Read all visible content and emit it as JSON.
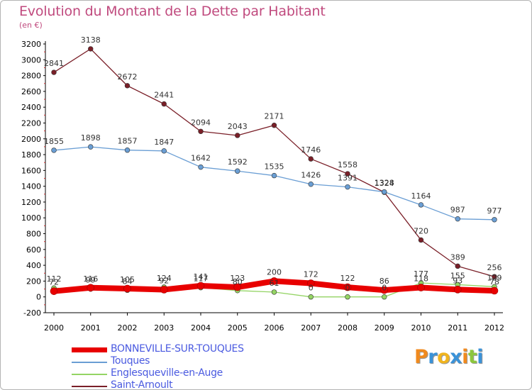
{
  "title": "Evolution du Montant de la Dette par Habitant",
  "unit_label": "(en €)",
  "logo": {
    "text": "Proxiti",
    "letter_colors": [
      "#f08a1e",
      "#3a92d8",
      "#f0b41e",
      "#3a92d8",
      "#f08a1e",
      "#8cc63e",
      "#3a92d8"
    ]
  },
  "chart_data": {
    "type": "line",
    "x": [
      2000,
      2001,
      2002,
      2003,
      2004,
      2005,
      2006,
      2007,
      2008,
      2009,
      2010,
      2011,
      2012
    ],
    "ylim": [
      -200,
      3200
    ],
    "yticks": [
      -200,
      0,
      200,
      400,
      600,
      800,
      1000,
      1200,
      1400,
      1600,
      1800,
      2000,
      2200,
      2400,
      2600,
      2800,
      3000,
      3200
    ],
    "grid": false,
    "legend_position": "bottom-left",
    "series": [
      {
        "name": "Saint-Arnoult",
        "color": "#7a1f28",
        "values": [
          2841,
          3138,
          2672,
          2441,
          2094,
          2043,
          2171,
          1746,
          1558,
          1324,
          720,
          389,
          256
        ],
        "labels": [
          "2841",
          "3138",
          "2672",
          "2441",
          "2094",
          "2043",
          "2171",
          "1746",
          "1558",
          "1324",
          "720",
          "389",
          "256"
        ]
      },
      {
        "name": "Touques",
        "color": "#6a9ed4",
        "values": [
          1855,
          1898,
          1857,
          1847,
          1642,
          1592,
          1535,
          1426,
          1391,
          1328,
          1164,
          987,
          977
        ],
        "labels": [
          "1855",
          "1898",
          "1857",
          "1847",
          "1642",
          "1592",
          "1535",
          "1426",
          "1391",
          "1328",
          "1164",
          "987",
          "977"
        ]
      },
      {
        "name": "Englesqueville-en-Auge",
        "color": "#94d464",
        "values": [
          112,
          99,
          84,
          124,
          117,
          80,
          61,
          0,
          0,
          0,
          177,
          155,
          129
        ],
        "labels": [
          "112",
          "99",
          "84",
          "124",
          "117",
          "80",
          "61",
          "0",
          "0",
          "0",
          "177",
          "155",
          "129"
        ]
      },
      {
        "name": "BONNEVILLE-SUR-TOUQUES",
        "color": "#e80000",
        "values": [
          72,
          116,
          105,
          92,
          141,
          123,
          200,
          172,
          122,
          86,
          118,
          93,
          78
        ],
        "labels": [
          "72",
          "116",
          "105",
          "92",
          "141",
          "123",
          "200",
          "172",
          "122",
          "86",
          "118",
          "93",
          "78"
        ]
      }
    ],
    "legend_order": [
      "BONNEVILLE-SUR-TOUQUES",
      "Touques",
      "Englesqueville-en-Auge",
      "Saint-Arnoult"
    ]
  }
}
